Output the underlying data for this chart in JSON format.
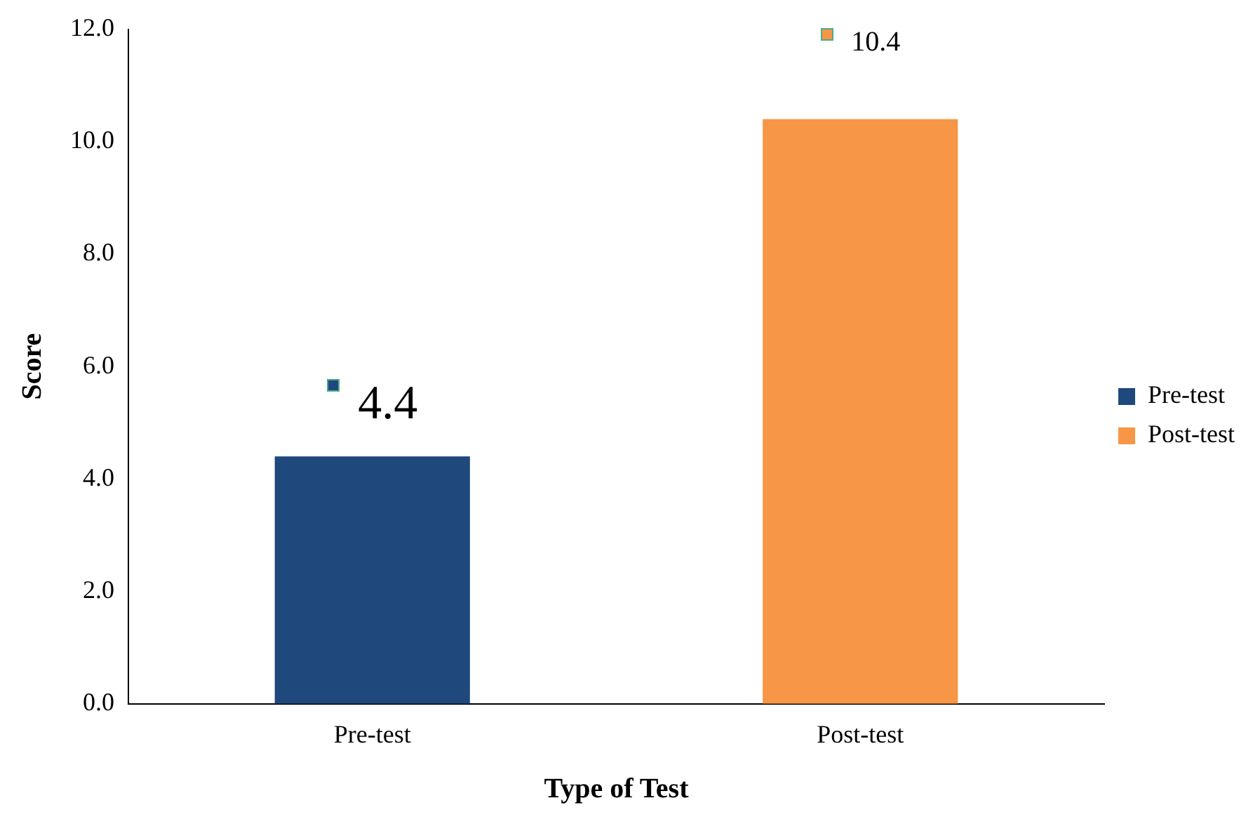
{
  "chart_data": {
    "type": "bar",
    "xlabel": "Type of Test",
    "ylabel": "Score",
    "categories": [
      "Pre-test",
      "Post-test"
    ],
    "series": [
      {
        "name": "Pre-test",
        "color": "#1f497d",
        "values": [
          4.4,
          null
        ]
      },
      {
        "name": "Post-test",
        "color": "#f79646",
        "values": [
          null,
          10.4
        ]
      }
    ],
    "ylim": [
      0,
      12
    ],
    "yticks": [
      {
        "value": 0,
        "label": "0.0"
      },
      {
        "value": 2,
        "label": "2.0"
      },
      {
        "value": 4,
        "label": "4.0"
      },
      {
        "value": 6,
        "label": "6.0"
      },
      {
        "value": 8,
        "label": "8.0"
      },
      {
        "value": 10,
        "label": "10.0"
      },
      {
        "value": 12,
        "label": "12.0"
      }
    ],
    "grid": false,
    "legend": "right",
    "data_labels": true
  }
}
